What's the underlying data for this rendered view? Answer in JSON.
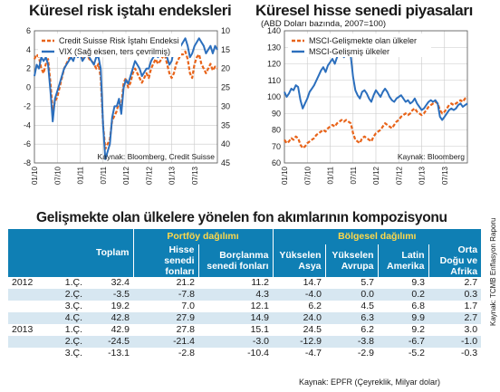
{
  "left_panel": {
    "title": "Küresel risk iştahı endeksleri",
    "source": "Kaynak: Bloomberg, Credit Suisse"
  },
  "right_panel": {
    "title": "Küresel hisse senedi piyasaları",
    "subtitle": "(ABD Doları bazında, 2007=100)",
    "source": "Kaynak: Bloomberg"
  },
  "colors": {
    "orange": "#e8641a",
    "blue": "#2c6fbd",
    "header_blue": "#0f7fb4",
    "header_yellow": "#ffd84a",
    "row_shade": "#d7e7f1"
  },
  "chart_data": [
    {
      "type": "line",
      "x_ticks": [
        "01/10",
        "07/10",
        "01/11",
        "07/11",
        "01/12",
        "07/12",
        "01/13",
        "07/13"
      ],
      "ylim_left": [
        -8,
        6
      ],
      "yticks_left": [
        -8,
        -6,
        -4,
        -2,
        0,
        2,
        4,
        6
      ],
      "ylim_right_inverted": [
        10,
        45
      ],
      "yticks_right": [
        10,
        15,
        20,
        25,
        30,
        35,
        40,
        45
      ],
      "grid": true,
      "legend_position": "top-left",
      "series": [
        {
          "name": "Credit Suisse Risk İştahı Endeksi",
          "axis": "left",
          "color": "#e8641a",
          "dashed": true,
          "x": [
            0,
            0.1,
            0.2,
            0.3,
            0.4,
            0.5,
            0.6,
            0.7,
            0.8,
            0.9,
            1.0,
            1.1,
            1.2,
            1.3,
            1.4,
            1.5,
            1.6,
            1.7,
            1.8,
            1.9,
            2.0,
            2.1,
            2.2,
            2.3,
            2.4,
            2.5,
            2.6,
            2.7,
            2.8,
            2.9,
            3.0,
            3.1,
            3.2,
            3.3,
            3.4,
            3.5,
            3.6,
            3.7,
            3.8,
            3.9,
            4.0,
            4.1,
            4.2,
            4.3,
            4.4,
            4.5,
            4.6,
            4.7,
            4.8,
            4.9,
            5.0,
            5.1,
            5.2,
            5.3,
            5.4,
            5.5,
            5.6,
            5.7,
            5.8,
            5.9,
            6.0,
            6.1,
            6.2,
            6.3,
            6.4,
            6.5,
            6.6,
            6.7,
            6.8,
            6.9,
            7.0,
            7.1,
            7.2,
            7.3,
            7.4,
            7.5,
            7.6,
            7.7,
            7.8,
            7.9,
            8.0
          ],
          "values": [
            3.0,
            3.5,
            3.2,
            2.0,
            1.5,
            2.5,
            3.0,
            0.5,
            -2.5,
            -1.5,
            -1.0,
            0.0,
            1.0,
            2.0,
            2.5,
            3.0,
            3.5,
            3.2,
            3.8,
            4.0,
            3.5,
            3.0,
            3.8,
            3.5,
            3.0,
            2.8,
            2.5,
            2.0,
            2.5,
            1.0,
            -4.0,
            -6.5,
            -6.0,
            -5.5,
            -3.5,
            -3.0,
            -2.5,
            -1.5,
            -2.0,
            0.5,
            1.0,
            0.0,
            0.5,
            1.5,
            2.0,
            1.5,
            1.0,
            0.5,
            1.0,
            1.5,
            1.0,
            2.0,
            2.5,
            3.0,
            2.5,
            2.8,
            3.2,
            3.5,
            2.5,
            1.5,
            1.0,
            1.5,
            2.5,
            3.0,
            3.5,
            3.5,
            3.8,
            3.0,
            1.5,
            1.0,
            2.5,
            3.2,
            3.5,
            2.5,
            2.0,
            1.5,
            2.0,
            2.5,
            1.8,
            2.2,
            2.0
          ]
        },
        {
          "name": "VIX (Sağ eksen, ters çevrilmiş)",
          "axis": "right",
          "color": "#2c6fbd",
          "dashed": false,
          "x": [
            0,
            0.1,
            0.2,
            0.3,
            0.4,
            0.5,
            0.6,
            0.7,
            0.8,
            0.9,
            1.0,
            1.1,
            1.2,
            1.3,
            1.4,
            1.5,
            1.6,
            1.7,
            1.8,
            1.9,
            2.0,
            2.1,
            2.2,
            2.3,
            2.4,
            2.5,
            2.6,
            2.7,
            2.8,
            2.9,
            3.0,
            3.1,
            3.2,
            3.3,
            3.4,
            3.5,
            3.6,
            3.7,
            3.8,
            3.9,
            4.0,
            4.1,
            4.2,
            4.3,
            4.4,
            4.5,
            4.6,
            4.7,
            4.8,
            4.9,
            5.0,
            5.1,
            5.2,
            5.3,
            5.4,
            5.5,
            5.6,
            5.7,
            5.8,
            5.9,
            6.0,
            6.1,
            6.2,
            6.3,
            6.4,
            6.5,
            6.6,
            6.7,
            6.8,
            6.9,
            7.0,
            7.1,
            7.2,
            7.3,
            7.4,
            7.5,
            7.6,
            7.7,
            7.8,
            7.9,
            8.0
          ],
          "values": [
            22,
            19,
            20,
            17,
            18,
            17,
            19,
            26,
            34,
            28,
            26,
            24,
            22,
            20,
            19,
            18,
            17,
            18,
            16,
            17,
            16,
            18,
            17,
            16,
            17,
            18,
            19,
            17,
            17,
            20,
            35,
            44,
            42,
            40,
            33,
            30,
            30,
            28,
            32,
            25,
            23,
            24,
            22,
            20,
            18,
            19,
            20,
            22,
            21,
            20,
            20,
            18,
            17,
            16,
            17,
            16,
            15,
            15,
            17,
            19,
            18,
            15,
            14,
            13,
            14,
            13,
            12,
            14,
            17,
            16,
            14,
            13,
            12,
            13,
            14,
            16,
            15,
            14,
            16,
            14,
            15
          ]
        }
      ]
    },
    {
      "type": "line",
      "x_ticks": [
        "01/10",
        "07/10",
        "01/11",
        "07/11",
        "01/12",
        "07/12",
        "01/13",
        "07/13"
      ],
      "ylim": [
        60,
        140
      ],
      "yticks": [
        60,
        70,
        80,
        90,
        100,
        110,
        120,
        130,
        140
      ],
      "grid": true,
      "legend_position": "top-left",
      "series": [
        {
          "name": "MSCI-Gelişmekte olan ülkeler",
          "color": "#e8641a",
          "dashed": true,
          "x": [
            0,
            0.1,
            0.2,
            0.3,
            0.4,
            0.5,
            0.6,
            0.7,
            0.8,
            0.9,
            1.0,
            1.1,
            1.2,
            1.3,
            1.4,
            1.5,
            1.6,
            1.7,
            1.8,
            1.9,
            2.0,
            2.1,
            2.2,
            2.3,
            2.4,
            2.5,
            2.6,
            2.7,
            2.8,
            2.9,
            3.0,
            3.1,
            3.2,
            3.3,
            3.4,
            3.5,
            3.6,
            3.7,
            3.8,
            3.9,
            4.0,
            4.1,
            4.2,
            4.3,
            4.4,
            4.5,
            4.6,
            4.7,
            4.8,
            4.9,
            5.0,
            5.1,
            5.2,
            5.3,
            5.4,
            5.5,
            5.6,
            5.7,
            5.8,
            5.9,
            6.0,
            6.1,
            6.2,
            6.3,
            6.4,
            6.5,
            6.6,
            6.7,
            6.8,
            6.9,
            7.0,
            7.1,
            7.2,
            7.3,
            7.4,
            7.5,
            7.6,
            7.7,
            7.8,
            7.9,
            8.0
          ],
          "values": [
            74,
            72,
            73,
            75,
            74,
            76,
            75,
            71,
            69,
            70,
            72,
            73,
            74,
            75,
            77,
            78,
            79,
            80,
            79,
            81,
            82,
            83,
            82,
            84,
            85,
            86,
            85,
            86,
            85,
            84,
            78,
            74,
            73,
            72,
            75,
            76,
            75,
            74,
            73,
            76,
            78,
            79,
            80,
            82,
            84,
            83,
            82,
            81,
            83,
            85,
            86,
            88,
            89,
            90,
            89,
            90,
            92,
            93,
            91,
            90,
            89,
            90,
            92,
            94,
            95,
            96,
            97,
            96,
            92,
            90,
            91,
            93,
            95,
            96,
            95,
            96,
            97,
            98,
            97,
            99,
            100
          ]
        },
        {
          "name": "MSCI-Gelişmiş ülkeler",
          "color": "#2c6fbd",
          "dashed": false,
          "x": [
            0,
            0.1,
            0.2,
            0.3,
            0.4,
            0.5,
            0.6,
            0.7,
            0.8,
            0.9,
            1.0,
            1.1,
            1.2,
            1.3,
            1.4,
            1.5,
            1.6,
            1.7,
            1.8,
            1.9,
            2.0,
            2.1,
            2.2,
            2.3,
            2.4,
            2.5,
            2.6,
            2.7,
            2.8,
            2.9,
            3.0,
            3.1,
            3.2,
            3.3,
            3.4,
            3.5,
            3.6,
            3.7,
            3.8,
            3.9,
            4.0,
            4.1,
            4.2,
            4.3,
            4.4,
            4.5,
            4.6,
            4.7,
            4.8,
            4.9,
            5.0,
            5.1,
            5.2,
            5.3,
            5.4,
            5.5,
            5.6,
            5.7,
            5.8,
            5.9,
            6.0,
            6.1,
            6.2,
            6.3,
            6.4,
            6.5,
            6.6,
            6.7,
            6.8,
            6.9,
            7.0,
            7.1,
            7.2,
            7.3,
            7.4,
            7.5,
            7.6,
            7.7,
            7.8,
            7.9,
            8.0
          ],
          "values": [
            103,
            100,
            102,
            105,
            104,
            107,
            106,
            98,
            93,
            96,
            99,
            103,
            105,
            107,
            110,
            113,
            116,
            118,
            115,
            119,
            121,
            123,
            120,
            124,
            126,
            127,
            124,
            126,
            128,
            125,
            112,
            104,
            101,
            99,
            103,
            104,
            102,
            99,
            97,
            101,
            104,
            102,
            100,
            103,
            105,
            103,
            100,
            98,
            97,
            99,
            100,
            101,
            99,
            97,
            98,
            96,
            97,
            99,
            96,
            94,
            92,
            93,
            95,
            97,
            98,
            97,
            98,
            96,
            88,
            86,
            88,
            90,
            92,
            93,
            92,
            93,
            95,
            96,
            94,
            95,
            96
          ]
        }
      ]
    }
  ],
  "table": {
    "title": "Gelişmekte olan ülkelere yönelen fon akımlarının kompozisyonu",
    "group_headers": {
      "portfolio": "Portföy dağılımı",
      "regional": "Bölgesel dağılımı"
    },
    "total_header": "Toplam",
    "columns": [
      "Hisse senedi fonları",
      "Borçlanma senedi fonları",
      "Yükselen Asya",
      "Yükselen Avrupa",
      "Latin Amerika",
      "Orta Doğu ve Afrika"
    ],
    "rows": [
      {
        "year": "2012",
        "quarter": "1.Ç.",
        "values": [
          "32.4",
          "21.2",
          "11.2",
          "14.7",
          "5.7",
          "9.3",
          "2.7"
        ]
      },
      {
        "year": "",
        "quarter": "2.Ç.",
        "values": [
          "-3.5",
          "-7.8",
          "4.3",
          "-4.0",
          "0.0",
          "0.2",
          "0.3"
        ]
      },
      {
        "year": "",
        "quarter": "3.Ç.",
        "values": [
          "19.2",
          "7.0",
          "12.1",
          "6.2",
          "4.5",
          "6.8",
          "1.7"
        ]
      },
      {
        "year": "",
        "quarter": "4.Ç.",
        "values": [
          "42.8",
          "27.9",
          "14.9",
          "24.0",
          "6.3",
          "9.9",
          "2.7"
        ]
      },
      {
        "year": "2013",
        "quarter": "1.Ç.",
        "values": [
          "42.9",
          "27.8",
          "15.1",
          "24.5",
          "6.2",
          "9.2",
          "3.0"
        ]
      },
      {
        "year": "",
        "quarter": "2.Ç.",
        "values": [
          "-24.5",
          "-21.4",
          "-3.0",
          "-12.9",
          "-3.8",
          "-6.7",
          "-1.0"
        ]
      },
      {
        "year": "",
        "quarter": "3.Ç.",
        "values": [
          "-13.1",
          "-2.8",
          "-10.4",
          "-4.7",
          "-2.9",
          "-5.2",
          "-0.3"
        ]
      }
    ],
    "source": "Kaynak: EPFR       (Çeyreklik, Milyar dolar)",
    "side_note": "Kaynak: TCMB Enflasyon Raporu"
  }
}
